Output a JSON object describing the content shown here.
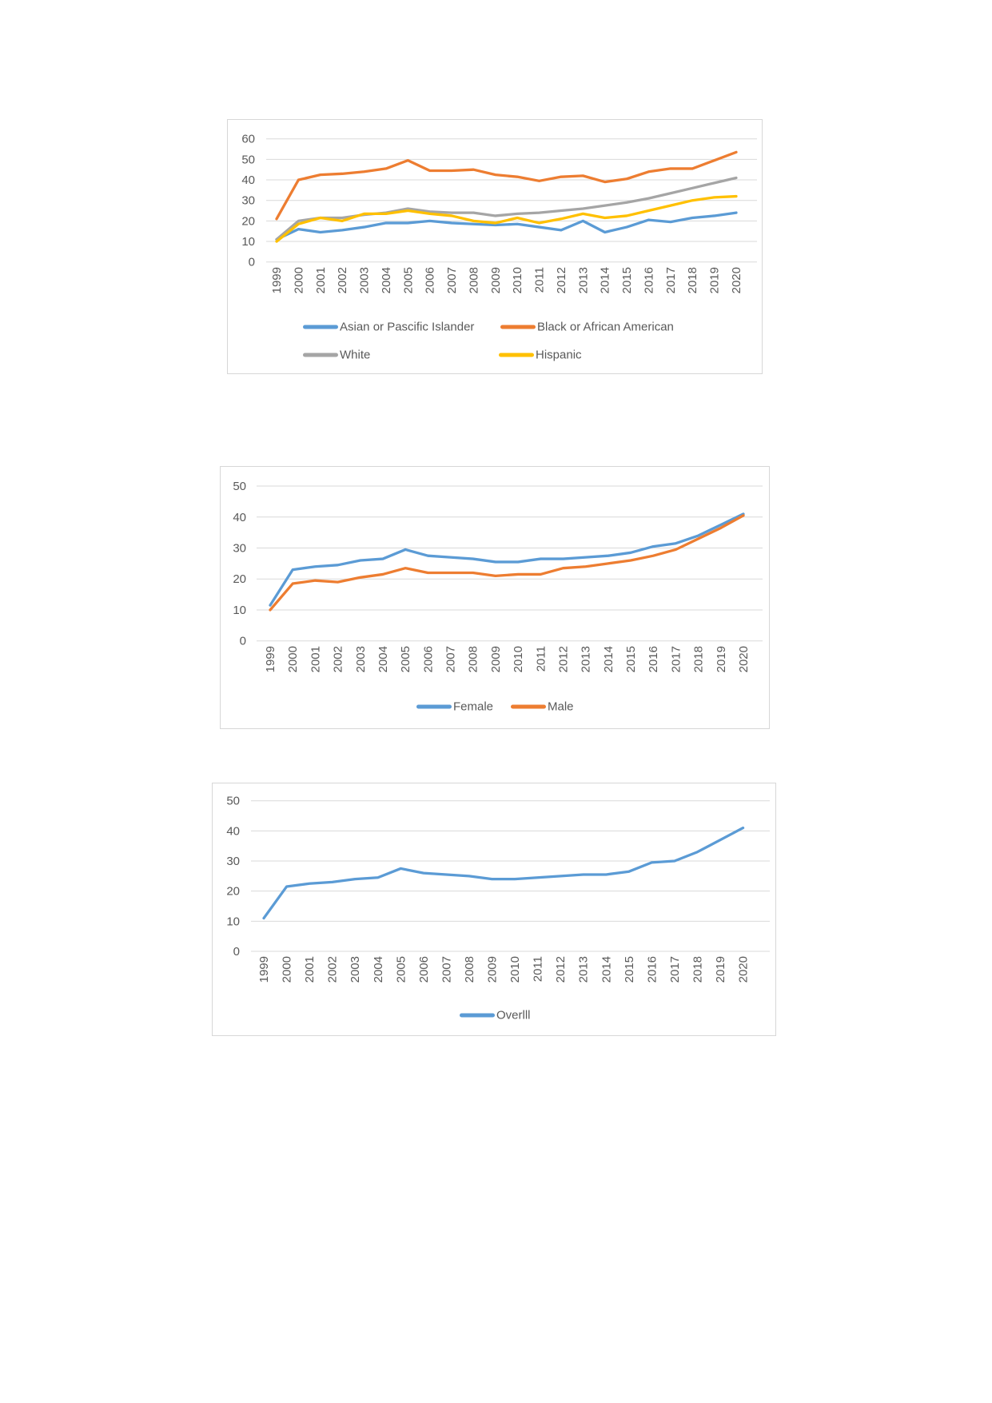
{
  "page": {
    "background_color": "#ffffff"
  },
  "chart_data": [
    {
      "id": "race-trend-chart",
      "type": "line",
      "title": "",
      "xlabel": "",
      "ylabel": "",
      "ylim": [
        0,
        60
      ],
      "y_tick_step": 10,
      "grid": true,
      "legend_position": "bottom",
      "axis_color": "#595959",
      "gridline_color": "#d9d9d9",
      "categories": [
        "1999",
        "2000",
        "2001",
        "2002",
        "2003",
        "2004",
        "2005",
        "2006",
        "2007",
        "2008",
        "2009",
        "2010",
        "2011",
        "2012",
        "2013",
        "2014",
        "2015",
        "2016",
        "2017",
        "2018",
        "2019",
        "2020"
      ],
      "series": [
        {
          "name": "Asian or Pascific Islander",
          "color": "#5B9BD5",
          "values": [
            11,
            16,
            14.5,
            15.5,
            17,
            19,
            19,
            20,
            19,
            18.5,
            18,
            18.5,
            17,
            15.5,
            20,
            14.5,
            17,
            20.5,
            19.5,
            21.5,
            22.5,
            24
          ]
        },
        {
          "name": "Black or African American",
          "color": "#ED7D31",
          "values": [
            21,
            40,
            42.5,
            43,
            44,
            45.5,
            49.5,
            44.5,
            44.5,
            45,
            42.5,
            41.5,
            39.5,
            41.5,
            42,
            39,
            40.5,
            44,
            45.5,
            45.5,
            49.5,
            53.5
          ]
        },
        {
          "name": "White",
          "color": "#A5A5A5",
          "values": [
            11,
            20,
            21.5,
            21.5,
            23,
            24,
            26,
            24.5,
            24,
            24,
            22.5,
            23.5,
            24,
            25,
            26,
            27.5,
            29,
            31,
            33.5,
            36,
            38.5,
            41
          ]
        },
        {
          "name": "Hispanic",
          "color": "#FFC000",
          "values": [
            10,
            18.5,
            21.5,
            20,
            23.5,
            23.5,
            25,
            23.5,
            22.5,
            20,
            19,
            21.5,
            19,
            21,
            23.5,
            21.5,
            22.5,
            25,
            27.5,
            30,
            31.5,
            32
          ]
        }
      ]
    },
    {
      "id": "gender-trend-chart",
      "type": "line",
      "title": "",
      "xlabel": "",
      "ylabel": "",
      "ylim": [
        0,
        50
      ],
      "y_tick_step": 10,
      "grid": true,
      "legend_position": "bottom",
      "axis_color": "#595959",
      "gridline_color": "#d9d9d9",
      "categories": [
        "1999",
        "2000",
        "2001",
        "2002",
        "2003",
        "2004",
        "2005",
        "2006",
        "2007",
        "2008",
        "2009",
        "2010",
        "2011",
        "2012",
        "2013",
        "2014",
        "2015",
        "2016",
        "2017",
        "2018",
        "2019",
        "2020"
      ],
      "series": [
        {
          "name": "Female",
          "color": "#5B9BD5",
          "values": [
            11.5,
            23,
            24,
            24.5,
            26,
            26.5,
            29.5,
            27.5,
            27,
            26.5,
            25.5,
            25.5,
            26.5,
            26.5,
            27,
            27.5,
            28.5,
            30.5,
            31.5,
            34,
            37.5,
            41
          ]
        },
        {
          "name": "Male",
          "color": "#ED7D31",
          "values": [
            10,
            18.5,
            19.5,
            19,
            20.5,
            21.5,
            23.5,
            22,
            22,
            22,
            21,
            21.5,
            21.5,
            23.5,
            24,
            25,
            26,
            27.5,
            29.5,
            33,
            36.5,
            40.5
          ]
        }
      ]
    },
    {
      "id": "overall-trend-chart",
      "type": "line",
      "title": "",
      "xlabel": "",
      "ylabel": "",
      "ylim": [
        0,
        50
      ],
      "y_tick_step": 10,
      "grid": true,
      "legend_position": "bottom",
      "axis_color": "#595959",
      "gridline_color": "#d9d9d9",
      "categories": [
        "1999",
        "2000",
        "2001",
        "2002",
        "2003",
        "2004",
        "2005",
        "2006",
        "2007",
        "2008",
        "2009",
        "2010",
        "2011",
        "2012",
        "2013",
        "2014",
        "2015",
        "2016",
        "2017",
        "2018",
        "2019",
        "2020"
      ],
      "series": [
        {
          "name": "Overlll",
          "color": "#5B9BD5",
          "values": [
            11,
            21.5,
            22.5,
            23,
            24,
            24.5,
            27.5,
            26,
            25.5,
            25,
            24,
            24,
            24.5,
            25,
            25.5,
            25.5,
            26.5,
            29.5,
            30,
            33,
            37,
            41
          ]
        }
      ]
    }
  ]
}
